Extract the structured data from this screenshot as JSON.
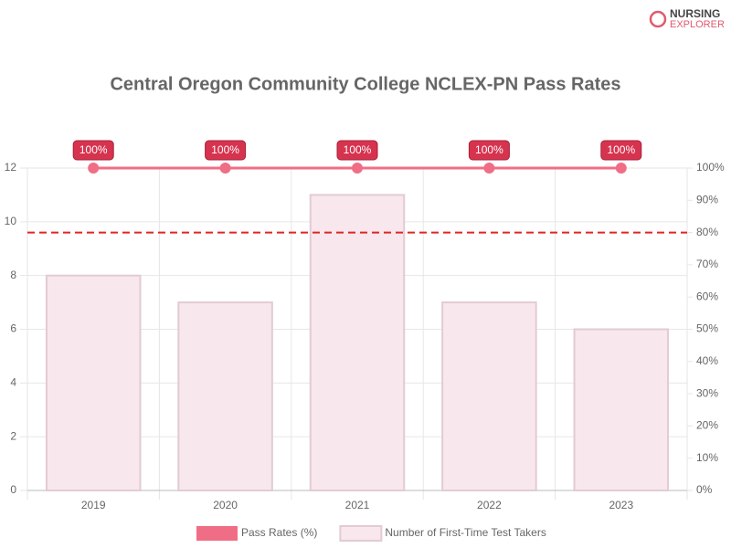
{
  "logo": {
    "line1": "NURSING",
    "line2": "EXPLORER"
  },
  "chart_data": {
    "type": "bar",
    "title": "Central Oregon Community College NCLEX-PN Pass Rates",
    "categories": [
      "2019",
      "2020",
      "2021",
      "2022",
      "2023"
    ],
    "series": [
      {
        "name": "Pass Rates (%)",
        "type": "line",
        "axis": "y2",
        "color": "#f06e85",
        "values": [
          100,
          100,
          100,
          100,
          100
        ],
        "value_labels": [
          "100%",
          "100%",
          "100%",
          "100%",
          "100%"
        ]
      },
      {
        "name": "Number of First-Time Test Takers",
        "type": "bar",
        "color": "#f8e7ed",
        "border_color": "#e3cbd3",
        "values": [
          8,
          7,
          11,
          7,
          6
        ]
      }
    ],
    "ylim": [
      0,
      12
    ],
    "yticks": [
      0,
      2,
      4,
      6,
      8,
      10,
      12
    ],
    "y2lim": [
      0,
      100
    ],
    "y2ticks": [
      {
        "value": 0,
        "label": "0%"
      },
      {
        "value": 10,
        "label": "10%"
      },
      {
        "value": 20,
        "label": "20%"
      },
      {
        "value": 30,
        "label": "30%"
      },
      {
        "value": 40,
        "label": "40%"
      },
      {
        "value": 50,
        "label": "50%"
      },
      {
        "value": 60,
        "label": "60%"
      },
      {
        "value": 70,
        "label": "70%"
      },
      {
        "value": 80,
        "label": "80%"
      },
      {
        "value": 90,
        "label": "90%"
      },
      {
        "value": 100,
        "label": "100%"
      }
    ],
    "reference_line": {
      "value": 80,
      "axis": "y2",
      "color": "#e02424"
    },
    "grid": true,
    "legend": "bottom"
  }
}
